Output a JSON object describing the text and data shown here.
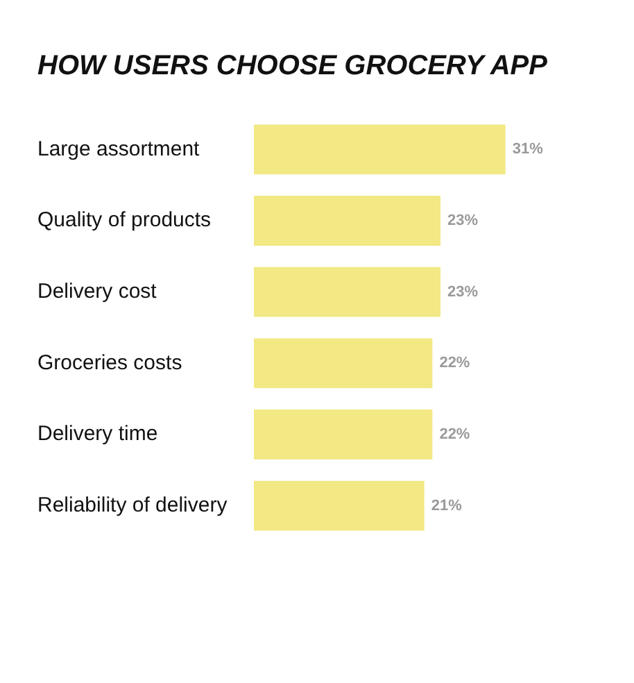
{
  "chart_data": {
    "type": "bar",
    "orientation": "horizontal",
    "title": "HOW USERS CHOOSE GROCERY APP",
    "categories": [
      "Large assortment",
      "Quality of products",
      "Delivery cost",
      "Groceries costs",
      "Delivery time",
      "Reliability of delivery"
    ],
    "values": [
      31,
      23,
      23,
      22,
      22,
      21
    ],
    "color": "#f2e884",
    "value_labels": [
      "31%",
      "23%",
      "23%",
      "22%",
      "22%",
      "21%"
    ]
  }
}
